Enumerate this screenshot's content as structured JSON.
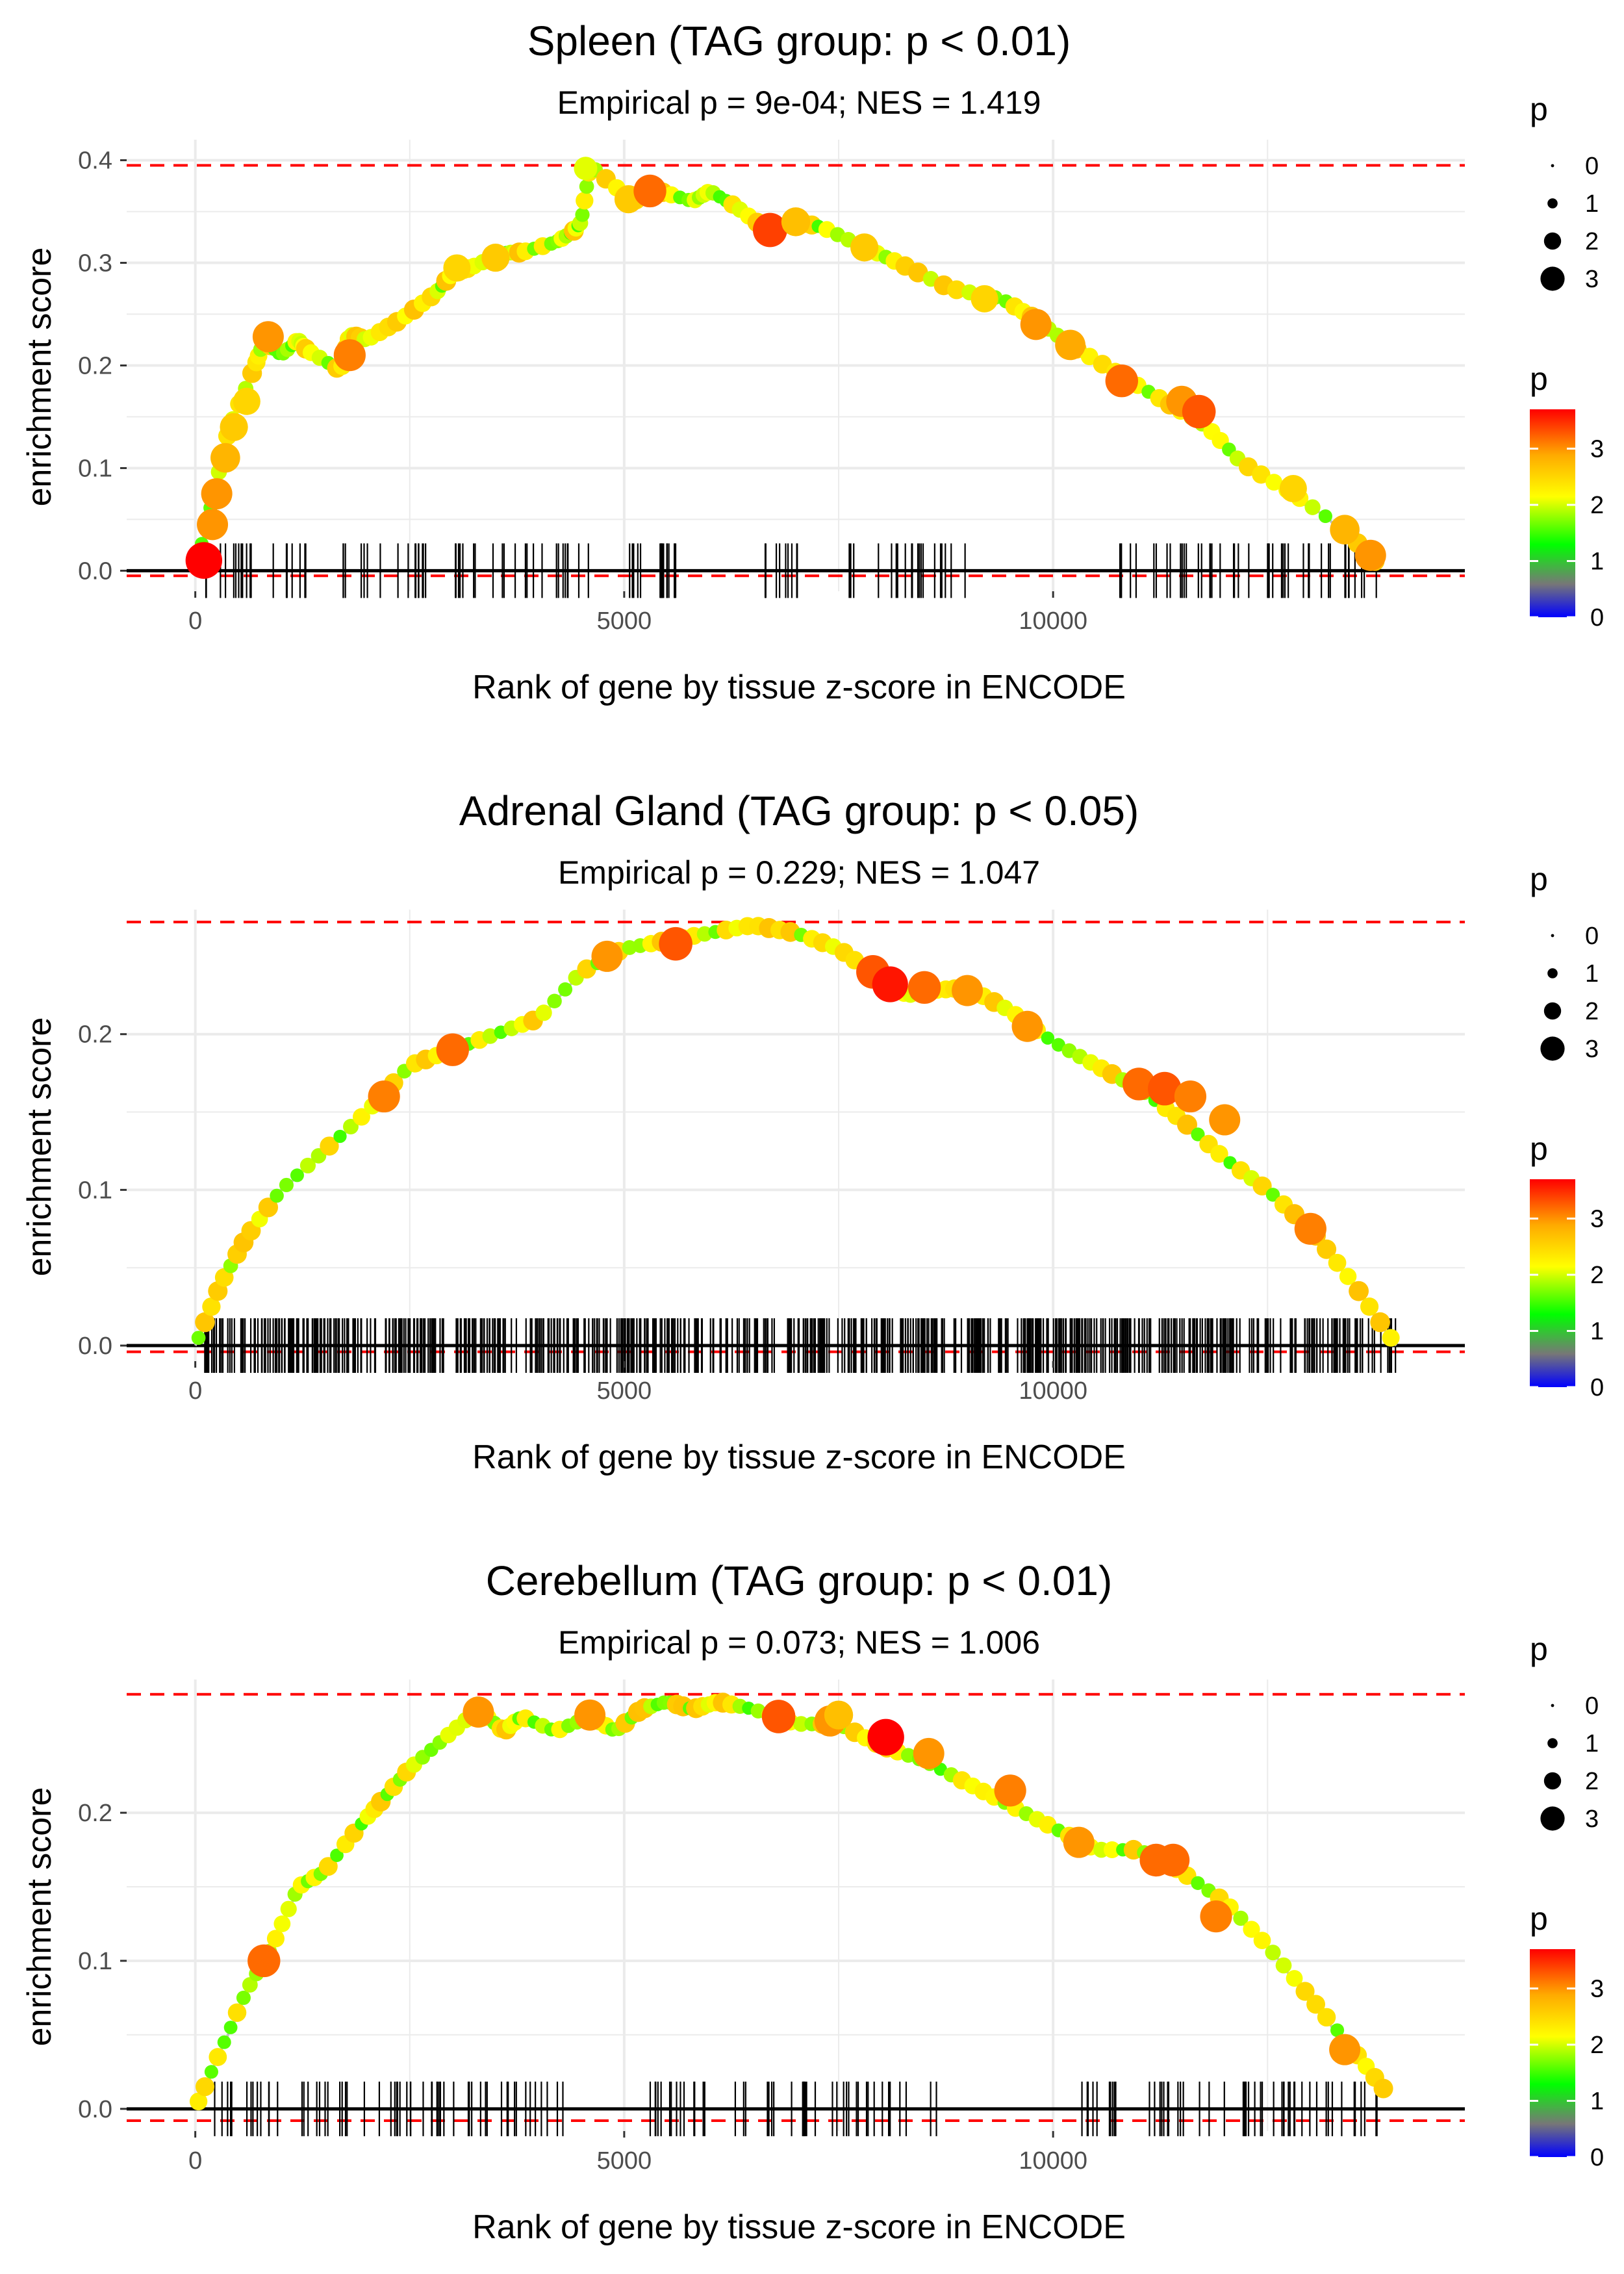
{
  "chart_data": [
    {
      "type": "line",
      "title": "Spleen (TAG group: p < 0.01)",
      "subtitle": "Empirical p = 9e-04; NES = 1.419",
      "xlabel": "Rank of gene by tissue z-score in ENCODE",
      "ylabel": "enrichment score",
      "xlim": [
        -800,
        14800
      ],
      "ylim": [
        -0.02,
        0.42
      ],
      "xticks": [
        0,
        5000,
        10000
      ],
      "xtick_labels": [
        "0",
        "5000",
        "10000"
      ],
      "yticks": [
        0.0,
        0.1,
        0.2,
        0.3,
        0.4
      ],
      "ytick_labels": [
        "0.0",
        "0.1",
        "0.2",
        "0.3",
        "0.4"
      ],
      "max_es": 0.395,
      "min_es": -0.005,
      "curve": {
        "x": [
          0,
          200,
          400,
          700,
          800,
          1000,
          1200,
          1300,
          1700,
          1800,
          2000,
          2400,
          2800,
          3000,
          3200,
          3600,
          3800,
          4200,
          4400,
          4500,
          4600,
          5100,
          5400,
          5800,
          6000,
          6300,
          6700,
          7000,
          7300,
          7800,
          8200,
          8800,
          9400,
          9800,
          10200,
          10800,
          11300,
          11800,
          12200,
          12800,
          13400,
          13800
        ],
        "y": [
          0.0,
          0.07,
          0.14,
          0.2,
          0.225,
          0.21,
          0.225,
          0.215,
          0.195,
          0.23,
          0.225,
          0.245,
          0.27,
          0.29,
          0.295,
          0.31,
          0.31,
          0.32,
          0.33,
          0.34,
          0.395,
          0.36,
          0.37,
          0.36,
          0.37,
          0.355,
          0.33,
          0.34,
          0.335,
          0.315,
          0.3,
          0.275,
          0.265,
          0.245,
          0.22,
          0.19,
          0.165,
          0.14,
          0.105,
          0.075,
          0.04,
          0.005
        ]
      },
      "points": [
        {
          "x": 100,
          "y": 0.01,
          "p": 3.7
        },
        {
          "x": 200,
          "y": 0.045,
          "p": 3.0
        },
        {
          "x": 250,
          "y": 0.075,
          "p": 3.0
        },
        {
          "x": 350,
          "y": 0.11,
          "p": 2.8
        },
        {
          "x": 450,
          "y": 0.14,
          "p": 2.6
        },
        {
          "x": 600,
          "y": 0.165,
          "p": 2.5
        },
        {
          "x": 850,
          "y": 0.228,
          "p": 3.0
        },
        {
          "x": 1800,
          "y": 0.21,
          "p": 3.1
        },
        {
          "x": 3050,
          "y": 0.295,
          "p": 2.5
        },
        {
          "x": 3500,
          "y": 0.305,
          "p": 2.6
        },
        {
          "x": 4550,
          "y": 0.392,
          "p": 2.0
        },
        {
          "x": 5050,
          "y": 0.362,
          "p": 2.6
        },
        {
          "x": 5300,
          "y": 0.37,
          "p": 3.2
        },
        {
          "x": 6700,
          "y": 0.332,
          "p": 3.4
        },
        {
          "x": 7000,
          "y": 0.34,
          "p": 2.7
        },
        {
          "x": 7800,
          "y": 0.315,
          "p": 2.6
        },
        {
          "x": 9200,
          "y": 0.265,
          "p": 2.5
        },
        {
          "x": 9800,
          "y": 0.24,
          "p": 3.0
        },
        {
          "x": 10200,
          "y": 0.22,
          "p": 2.9
        },
        {
          "x": 10800,
          "y": 0.185,
          "p": 3.2
        },
        {
          "x": 11500,
          "y": 0.165,
          "p": 3.0
        },
        {
          "x": 11700,
          "y": 0.155,
          "p": 3.3
        },
        {
          "x": 12800,
          "y": 0.08,
          "p": 2.5
        },
        {
          "x": 13400,
          "y": 0.04,
          "p": 2.8
        },
        {
          "x": 13700,
          "y": 0.015,
          "p": 3.0
        }
      ],
      "hit_count": 150,
      "hit_gaps": [
        [
          1300,
          1700
        ],
        [
          4600,
          5000
        ],
        [
          5600,
          6500
        ],
        [
          7300,
          7600
        ],
        [
          9000,
          10600
        ]
      ]
    },
    {
      "type": "line",
      "title": "Adrenal Gland (TAG group: p < 0.05)",
      "subtitle": "Empirical p = 0.229; NES = 1.047",
      "xlabel": "Rank of gene by tissue z-score in ENCODE",
      "ylabel": "enrichment score",
      "xlim": [
        -800,
        14800
      ],
      "ylim": [
        -0.01,
        0.28
      ],
      "xticks": [
        0,
        5000,
        10000
      ],
      "xtick_labels": [
        "0",
        "5000",
        "10000"
      ],
      "yticks": [
        0.0,
        0.1,
        0.2
      ],
      "ytick_labels": [
        "0.0",
        "0.1",
        "0.2"
      ],
      "max_es": 0.272,
      "min_es": -0.004,
      "curve": {
        "x": [
          0,
          300,
          600,
          1000,
          1500,
          2000,
          2500,
          3000,
          3500,
          4000,
          4500,
          5000,
          5500,
          6000,
          6500,
          7000,
          7500,
          8000,
          8300,
          8600,
          9000,
          9500,
          10000,
          10500,
          11000,
          11500,
          12000,
          12500,
          13000,
          13500,
          14000
        ],
        "y": [
          0.0,
          0.04,
          0.07,
          0.1,
          0.125,
          0.15,
          0.18,
          0.19,
          0.2,
          0.21,
          0.24,
          0.255,
          0.26,
          0.265,
          0.27,
          0.265,
          0.255,
          0.235,
          0.225,
          0.228,
          0.23,
          0.215,
          0.195,
          0.18,
          0.165,
          0.145,
          0.12,
          0.1,
          0.075,
          0.04,
          0.0
        ]
      },
      "points": [
        {
          "x": 2200,
          "y": 0.16,
          "p": 3.1
        },
        {
          "x": 3000,
          "y": 0.19,
          "p": 3.2
        },
        {
          "x": 4800,
          "y": 0.25,
          "p": 3.0
        },
        {
          "x": 5600,
          "y": 0.258,
          "p": 3.3
        },
        {
          "x": 7900,
          "y": 0.24,
          "p": 3.3
        },
        {
          "x": 8100,
          "y": 0.232,
          "p": 3.6
        },
        {
          "x": 8500,
          "y": 0.23,
          "p": 3.2
        },
        {
          "x": 9000,
          "y": 0.228,
          "p": 3.0
        },
        {
          "x": 9700,
          "y": 0.205,
          "p": 3.0
        },
        {
          "x": 11000,
          "y": 0.168,
          "p": 3.2
        },
        {
          "x": 11300,
          "y": 0.165,
          "p": 3.3
        },
        {
          "x": 11600,
          "y": 0.16,
          "p": 3.1
        },
        {
          "x": 12000,
          "y": 0.145,
          "p": 3.0
        },
        {
          "x": 13000,
          "y": 0.075,
          "p": 3.1
        }
      ],
      "hit_count": 650,
      "hit_gaps": []
    },
    {
      "type": "line",
      "title": "Cerebellum (TAG group: p < 0.01)",
      "subtitle": "Empirical p = 0.073; NES = 1.006",
      "xlabel": "Rank of gene by tissue z-score in ENCODE",
      "ylabel": "enrichment score",
      "xlim": [
        -800,
        14800
      ],
      "ylim": [
        -0.015,
        0.29
      ],
      "xticks": [
        0,
        5000,
        10000
      ],
      "xtick_labels": [
        "0",
        "5000",
        "10000"
      ],
      "yticks": [
        0.0,
        0.1,
        0.2
      ],
      "ytick_labels": [
        "0.0",
        "0.1",
        "0.2"
      ],
      "max_es": 0.28,
      "min_es": -0.008,
      "curve": {
        "x": [
          0,
          300,
          600,
          900,
          1200,
          1500,
          1900,
          2200,
          2500,
          2900,
          3300,
          3600,
          3800,
          4200,
          4600,
          4900,
          5200,
          5500,
          5800,
          6100,
          6500,
          7000,
          7500,
          8000,
          8500,
          9000,
          9500,
          10000,
          10500,
          11000,
          11500,
          12000,
          12500,
          13000,
          13500,
          13900
        ],
        "y": [
          0.0,
          0.04,
          0.08,
          0.11,
          0.15,
          0.16,
          0.19,
          0.21,
          0.23,
          0.25,
          0.27,
          0.255,
          0.265,
          0.255,
          0.265,
          0.255,
          0.27,
          0.275,
          0.27,
          0.275,
          0.27,
          0.26,
          0.26,
          0.245,
          0.235,
          0.22,
          0.205,
          0.19,
          0.175,
          0.175,
          0.16,
          0.14,
          0.11,
          0.075,
          0.04,
          0.01
        ]
      },
      "points": [
        {
          "x": 800,
          "y": 0.1,
          "p": 3.2
        },
        {
          "x": 3300,
          "y": 0.268,
          "p": 3.0
        },
        {
          "x": 4600,
          "y": 0.266,
          "p": 3.0
        },
        {
          "x": 6800,
          "y": 0.265,
          "p": 3.3
        },
        {
          "x": 7400,
          "y": 0.262,
          "p": 3.0
        },
        {
          "x": 7500,
          "y": 0.266,
          "p": 2.7
        },
        {
          "x": 8050,
          "y": 0.251,
          "p": 3.7
        },
        {
          "x": 8550,
          "y": 0.24,
          "p": 3.0
        },
        {
          "x": 9500,
          "y": 0.215,
          "p": 3.1
        },
        {
          "x": 10300,
          "y": 0.18,
          "p": 3.0
        },
        {
          "x": 11200,
          "y": 0.168,
          "p": 3.2
        },
        {
          "x": 11400,
          "y": 0.168,
          "p": 3.2
        },
        {
          "x": 11900,
          "y": 0.13,
          "p": 3.1
        },
        {
          "x": 13400,
          "y": 0.04,
          "p": 3.0
        }
      ],
      "hit_count": 160,
      "hit_gaps": [
        [
          4400,
          5300
        ],
        [
          9000,
          10300
        ]
      ]
    }
  ],
  "legend": {
    "size_title": "p",
    "size_labels": [
      "0",
      "1",
      "2",
      "3"
    ],
    "color_title": "p",
    "color_labels": [
      "3",
      "2",
      "1",
      "0"
    ],
    "color_stops": [
      "#0000ff",
      "#777777",
      "#00ff00",
      "#ffff00",
      "#ffaa00",
      "#ff0000"
    ]
  },
  "colors": {
    "hline": "#ff0000",
    "curve": "#bebebe",
    "grid": "#ebebeb",
    "axis": "#000000"
  }
}
